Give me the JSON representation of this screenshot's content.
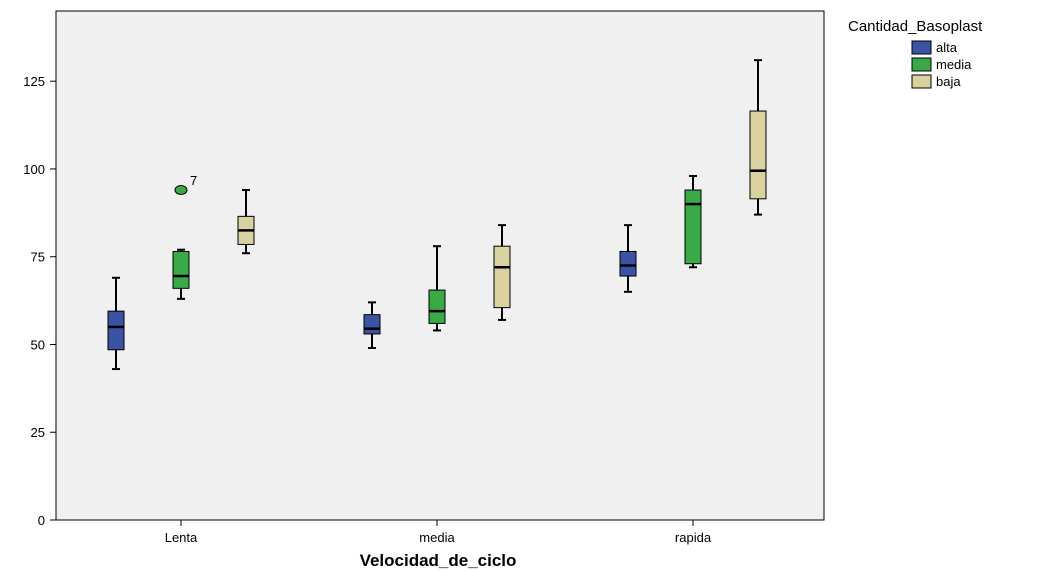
{
  "chart_data": {
    "type": "boxplot",
    "title": "",
    "xlabel": "Velocidad_de_ciclo",
    "ylabel": "",
    "ylim": [
      0,
      145
    ],
    "yticks": [
      0,
      25,
      50,
      75,
      100,
      125
    ],
    "grid": false,
    "legend_placement": "top-right",
    "legend_title": "Cantidad_Basoplast",
    "categories": [
      "Lenta",
      "media",
      "rapida"
    ],
    "series": [
      {
        "name": "alta",
        "color": "#3a53a4",
        "boxes": [
          {
            "min": 43,
            "q1": 48.5,
            "median": 55,
            "q3": 59.5,
            "max": 69
          },
          {
            "min": 49,
            "q1": 53,
            "median": 54.5,
            "q3": 58.5,
            "max": 62
          },
          {
            "min": 65,
            "q1": 69.5,
            "median": 72.5,
            "q3": 76.5,
            "max": 84
          }
        ]
      },
      {
        "name": "media",
        "color": "#3aaa48",
        "boxes": [
          {
            "min": 63,
            "q1": 66,
            "median": 69.5,
            "q3": 76.5,
            "max": 77,
            "outliers": [
              {
                "value": 94,
                "label": "7"
              }
            ]
          },
          {
            "min": 54,
            "q1": 56,
            "median": 59.5,
            "q3": 65.5,
            "max": 78
          },
          {
            "min": 72,
            "q1": 73,
            "median": 90,
            "q3": 94,
            "max": 98
          }
        ]
      },
      {
        "name": "baja",
        "color": "#d9d29e",
        "boxes": [
          {
            "min": 76,
            "q1": 78.5,
            "median": 82.5,
            "q3": 86.5,
            "max": 94
          },
          {
            "min": 57,
            "q1": 60.5,
            "median": 72,
            "q3": 78,
            "max": 84
          },
          {
            "min": 87,
            "q1": 91.5,
            "median": 99.5,
            "q3": 116.5,
            "max": 131
          }
        ]
      }
    ]
  }
}
